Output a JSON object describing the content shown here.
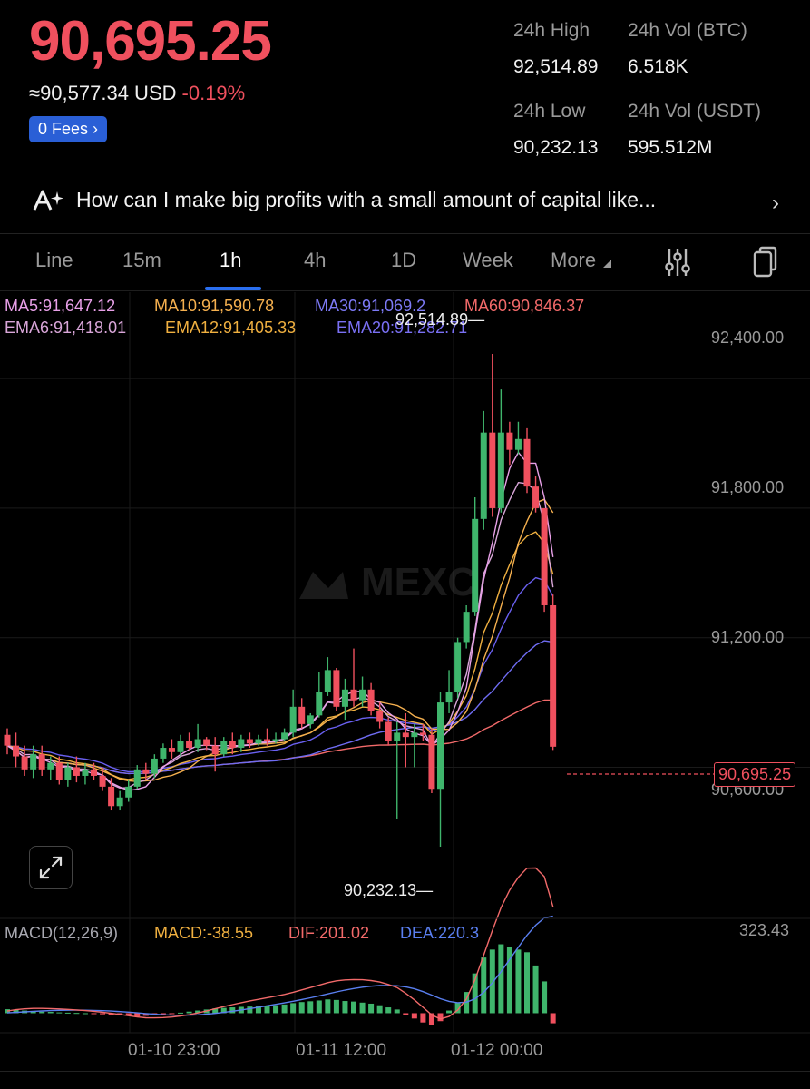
{
  "ticker": {
    "price": "90,695.25",
    "approx": "≈90,577.34 USD",
    "change": "-0.19%",
    "fees_label": "0 Fees",
    "fees_chevron": "›"
  },
  "stats": {
    "high_label": "24h High",
    "high_value": "92,514.89",
    "vol_btc_label": "24h Vol (BTC)",
    "vol_btc_value": "6.518K",
    "low_label": "24h Low",
    "low_value": "90,232.13",
    "vol_usdt_label": "24h Vol  (USDT)",
    "vol_usdt_value": "595.512M"
  },
  "ai_prompt": {
    "icon": "ai-sparkle-icon",
    "text": "How can I make big profits with a small amount of capital like...",
    "chevron": "›"
  },
  "timeframes": {
    "line": "Line",
    "m15": "15m",
    "h1": "1h",
    "h4": "4h",
    "d1": "1D",
    "week": "Week",
    "more": "More",
    "active": "1h"
  },
  "toolbar_icons": [
    "indicator-settings-icon",
    "copy-icon"
  ],
  "indicators": {
    "ma5": "MA5:91,647.12",
    "ma10": "MA10:91,590.78",
    "ma30": "MA30:91,069.2",
    "ma60": "MA60:90,846.37",
    "ema6": "EMA6:91,418.01",
    "ema12": "EMA12:91,405.33",
    "ema20": "EMA20:91,282.71"
  },
  "price_axis": {
    "p1": "92,400.00",
    "p2": "91,800.00",
    "p3": "91,200.00",
    "p4": "90,600.00",
    "current": "90,695.25"
  },
  "markers": {
    "high": "92,514.89",
    "low": "90,232.13"
  },
  "watermark": "MEXC",
  "macd": {
    "title": "MACD(12,26,9)",
    "macd": "MACD:-38.55",
    "dif": "DIF:201.02",
    "dea": "DEA:220.3",
    "axis_max": "323.43"
  },
  "time_axis": {
    "t1": "01-10 23:00",
    "t2": "01-11 12:00",
    "t3": "01-12 00:00"
  },
  "colors": {
    "up": "#3fb56c",
    "down": "#f0505e",
    "ma5": "#e8a0e8",
    "ma10": "#f5b04f",
    "ma30": "#6f6cf2",
    "ma60": "#f26a6a",
    "ema6": "#d9a6d9",
    "ema12": "#f0b040",
    "ema20": "#6a60f0",
    "dif": "#f26a6a",
    "dea": "#5a7ff0"
  },
  "chart_data": {
    "type": "candlestick",
    "price_range": [
      89900,
      92800
    ],
    "candles": [
      {
        "o": 90750,
        "h": 90780,
        "c": 90700,
        "l": 90660
      },
      {
        "o": 90700,
        "h": 90760,
        "c": 90650,
        "l": 90600
      },
      {
        "o": 90650,
        "h": 90700,
        "c": 90590,
        "l": 90560
      },
      {
        "o": 90590,
        "h": 90700,
        "c": 90660,
        "l": 90550
      },
      {
        "o": 90660,
        "h": 90700,
        "c": 90590,
        "l": 90560
      },
      {
        "o": 90590,
        "h": 90650,
        "c": 90620,
        "l": 90540
      },
      {
        "o": 90620,
        "h": 90650,
        "c": 90540,
        "l": 90520
      },
      {
        "o": 90540,
        "h": 90620,
        "c": 90600,
        "l": 90510
      },
      {
        "o": 90600,
        "h": 90650,
        "c": 90560,
        "l": 90530
      },
      {
        "o": 90560,
        "h": 90620,
        "c": 90590,
        "l": 90520
      },
      {
        "o": 90590,
        "h": 90620,
        "c": 90560,
        "l": 90540
      },
      {
        "o": 90560,
        "h": 90600,
        "c": 90510,
        "l": 90490
      },
      {
        "o": 90510,
        "h": 90550,
        "c": 90420,
        "l": 90400
      },
      {
        "o": 90420,
        "h": 90490,
        "c": 90460,
        "l": 90400
      },
      {
        "o": 90460,
        "h": 90540,
        "c": 90510,
        "l": 90440
      },
      {
        "o": 90510,
        "h": 90610,
        "c": 90590,
        "l": 90500
      },
      {
        "o": 90590,
        "h": 90620,
        "c": 90570,
        "l": 90540
      },
      {
        "o": 90570,
        "h": 90660,
        "c": 90640,
        "l": 90550
      },
      {
        "o": 90640,
        "h": 90710,
        "c": 90690,
        "l": 90620
      },
      {
        "o": 90690,
        "h": 90730,
        "c": 90670,
        "l": 90640
      },
      {
        "o": 90670,
        "h": 90750,
        "c": 90720,
        "l": 90650
      },
      {
        "o": 90720,
        "h": 90760,
        "c": 90690,
        "l": 90680
      },
      {
        "o": 90690,
        "h": 90800,
        "c": 90730,
        "l": 90670
      },
      {
        "o": 90730,
        "h": 90740,
        "c": 90700,
        "l": 90680
      },
      {
        "o": 90700,
        "h": 90740,
        "c": 90660,
        "l": 90580
      },
      {
        "o": 90660,
        "h": 90740,
        "c": 90720,
        "l": 90650
      },
      {
        "o": 90720,
        "h": 90760,
        "c": 90690,
        "l": 90660
      },
      {
        "o": 90690,
        "h": 90750,
        "c": 90730,
        "l": 90670
      },
      {
        "o": 90730,
        "h": 90760,
        "c": 90710,
        "l": 90690
      },
      {
        "o": 90710,
        "h": 90750,
        "c": 90730,
        "l": 90700
      },
      {
        "o": 90730,
        "h": 90780,
        "c": 90720,
        "l": 90700
      },
      {
        "o": 90720,
        "h": 90760,
        "c": 90730,
        "l": 90710
      },
      {
        "o": 90730,
        "h": 90780,
        "c": 90760,
        "l": 90720
      },
      {
        "o": 90760,
        "h": 90960,
        "c": 90880,
        "l": 90740
      },
      {
        "o": 90880,
        "h": 90920,
        "c": 90800,
        "l": 90780
      },
      {
        "o": 90800,
        "h": 90850,
        "c": 90840,
        "l": 90780
      },
      {
        "o": 90840,
        "h": 91040,
        "c": 90950,
        "l": 90830
      },
      {
        "o": 90950,
        "h": 91110,
        "c": 91050,
        "l": 90930
      },
      {
        "o": 91050,
        "h": 91060,
        "c": 90880,
        "l": 90860
      },
      {
        "o": 90880,
        "h": 91010,
        "c": 90960,
        "l": 90820
      },
      {
        "o": 90960,
        "h": 91150,
        "c": 90910,
        "l": 90880
      },
      {
        "o": 90910,
        "h": 91020,
        "c": 90960,
        "l": 90880
      },
      {
        "o": 90960,
        "h": 90990,
        "c": 90860,
        "l": 90840
      },
      {
        "o": 90860,
        "h": 90900,
        "c": 90810,
        "l": 90780
      },
      {
        "o": 90810,
        "h": 90830,
        "c": 90720,
        "l": 90700
      },
      {
        "o": 90720,
        "h": 90810,
        "c": 90760,
        "l": 90360
      },
      {
        "o": 90760,
        "h": 90850,
        "c": 90740,
        "l": 90600
      },
      {
        "o": 90740,
        "h": 90800,
        "c": 90760,
        "l": 90600
      },
      {
        "o": 90760,
        "h": 90800,
        "c": 90750,
        "l": 90720
      },
      {
        "o": 90750,
        "h": 90780,
        "c": 90500,
        "l": 90480
      },
      {
        "o": 90500,
        "h": 90950,
        "c": 90900,
        "l": 90232
      },
      {
        "o": 90900,
        "h": 91050,
        "c": 90950,
        "l": 90850
      },
      {
        "o": 90950,
        "h": 91200,
        "c": 91180,
        "l": 90920
      },
      {
        "o": 91180,
        "h": 91350,
        "c": 91320,
        "l": 91150
      },
      {
        "o": 91320,
        "h": 91850,
        "c": 91750,
        "l": 91300
      },
      {
        "o": 91750,
        "h": 92250,
        "c": 92150,
        "l": 91700
      },
      {
        "o": 92150,
        "h": 92514,
        "c": 91800,
        "l": 91760
      },
      {
        "o": 91800,
        "h": 92350,
        "c": 92150,
        "l": 91780
      },
      {
        "o": 92150,
        "h": 92200,
        "c": 92070,
        "l": 92000
      },
      {
        "o": 92070,
        "h": 92200,
        "c": 92120,
        "l": 92050
      },
      {
        "o": 92120,
        "h": 92170,
        "c": 91900,
        "l": 91870
      },
      {
        "o": 91900,
        "h": 91950,
        "c": 91800,
        "l": 91780
      },
      {
        "o": 91800,
        "h": 91800,
        "c": 91350,
        "l": 91320
      },
      {
        "o": 91350,
        "h": 91400,
        "c": 90695,
        "l": 90680
      }
    ],
    "macd_range": [
      -60,
      323.43
    ],
    "macd_hist": [
      15,
      12,
      10,
      8,
      6,
      5,
      3,
      2,
      1,
      0,
      -2,
      -4,
      -6,
      -8,
      -10,
      -12,
      -10,
      -6,
      -4,
      -2,
      2,
      6,
      10,
      14,
      18,
      20,
      22,
      24,
      25,
      26,
      28,
      30,
      33,
      38,
      42,
      45,
      48,
      52,
      50,
      46,
      44,
      40,
      36,
      30,
      22,
      14,
      -8,
      -20,
      -35,
      -45,
      -30,
      10,
      40,
      80,
      150,
      210,
      240,
      260,
      250,
      240,
      230,
      180,
      120,
      -38
    ]
  }
}
